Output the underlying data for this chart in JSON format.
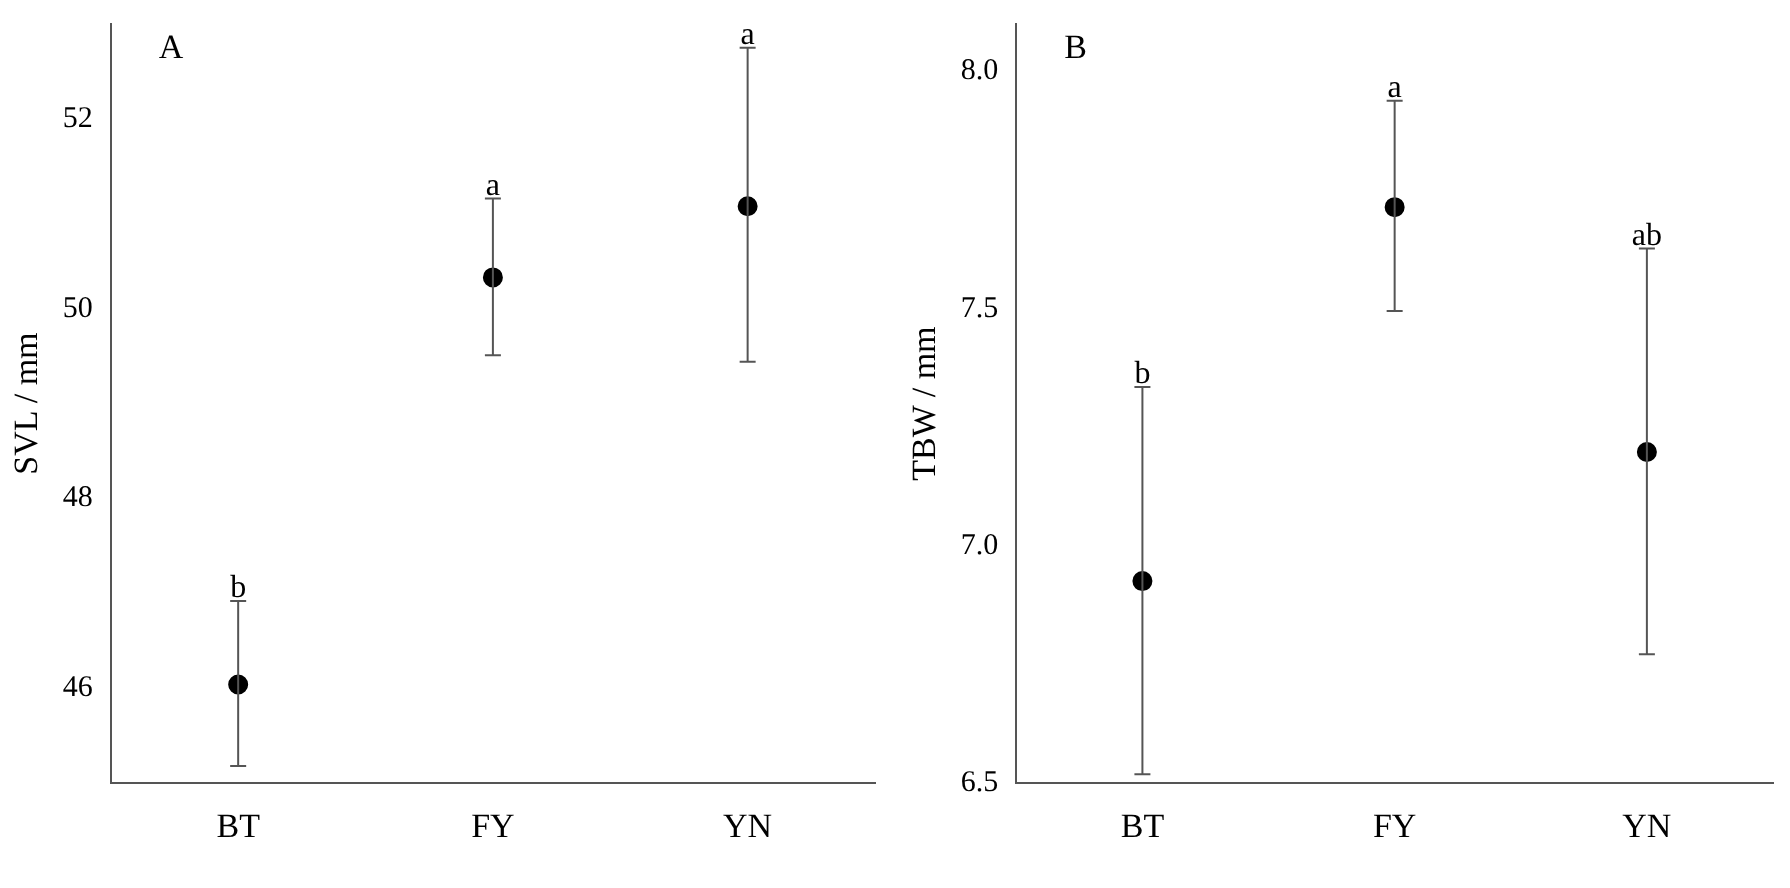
{
  "chart_data": [
    {
      "type": "scatter",
      "title": "A",
      "ylabel": "SVL / mm",
      "categories": [
        "BT",
        "FY",
        "YN"
      ],
      "marker": "circle",
      "grid": false,
      "legend": false,
      "series": [
        {
          "color": "#000000",
          "values": [
            46.04,
            50.33,
            51.08
          ],
          "errors": [
            [
              45.18,
              46.92
            ],
            [
              49.51,
              51.16
            ],
            [
              49.44,
              52.75
            ]
          ]
        }
      ],
      "ylim": [
        45,
        53
      ],
      "yticks": [
        46,
        48,
        50,
        52
      ],
      "annotations": [
        {
          "text": "b",
          "x": "BT",
          "y": 46.92
        },
        {
          "text": "a",
          "x": "FY",
          "y": 51.16
        },
        {
          "text": "a",
          "x": "YN",
          "y": 52.75
        }
      ]
    },
    {
      "type": "scatter",
      "title": "B",
      "ylabel": "TBW / mm",
      "categories": [
        "BT",
        "FY",
        "YN"
      ],
      "marker": "circle",
      "grid": false,
      "legend": false,
      "series": [
        {
          "color": "#000000",
          "values": [
            6.926,
            7.714,
            7.198
          ],
          "errors": [
            [
              6.519,
              7.335
            ],
            [
              7.495,
              7.938
            ],
            [
              6.772,
              7.627
            ]
          ]
        }
      ],
      "ylim": [
        6.5,
        8.1
      ],
      "yticks": [
        {
          "value": 6.5,
          "label": "6.5"
        },
        {
          "value": 7.0,
          "label": "7.0"
        },
        {
          "value": 7.5,
          "label": "7.5"
        },
        {
          "value": 8.0,
          "label": "8.0"
        }
      ],
      "annotations": [
        {
          "text": "b",
          "x": "BT",
          "y": 7.335
        },
        {
          "text": "a",
          "x": "FY",
          "y": 7.938
        },
        {
          "text": "ab",
          "x": "YN",
          "y": 7.627
        }
      ]
    }
  ]
}
